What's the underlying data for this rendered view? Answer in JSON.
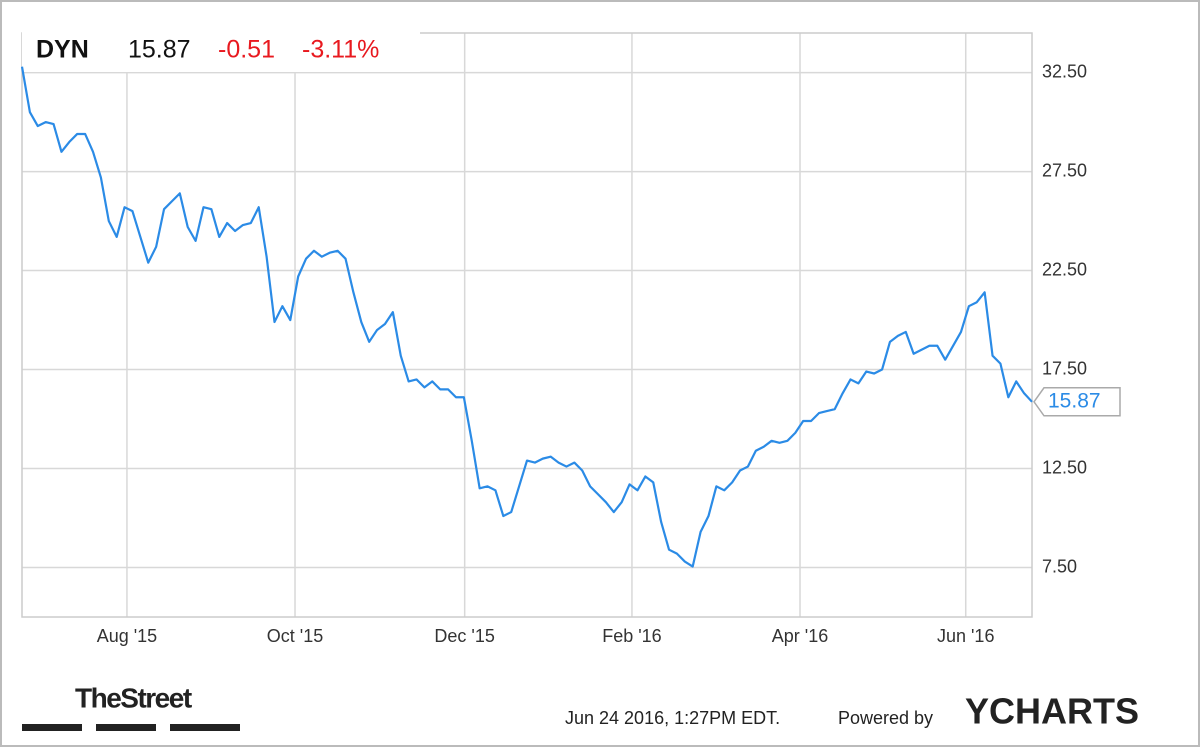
{
  "quote": {
    "symbol": "DYN",
    "price": "15.87",
    "change": "-0.51",
    "change_pct": "-3.11%"
  },
  "chart_data": {
    "type": "line",
    "series": [
      {
        "name": "DYN",
        "color": "#2b8be6",
        "values": [
          32.8,
          30.5,
          29.8,
          30.0,
          29.9,
          28.5,
          29.0,
          29.4,
          29.4,
          28.5,
          27.2,
          25.0,
          24.2,
          25.7,
          25.5,
          24.2,
          22.9,
          23.7,
          25.6,
          26.0,
          26.4,
          24.7,
          24.0,
          25.7,
          25.6,
          24.2,
          24.9,
          24.5,
          24.8,
          24.9,
          25.7,
          23.2,
          19.9,
          20.7,
          20.0,
          22.2,
          23.1,
          23.5,
          23.2,
          23.4,
          23.5,
          23.1,
          21.4,
          19.9,
          18.9,
          19.5,
          19.8,
          20.4,
          18.2,
          16.9,
          17.0,
          16.6,
          16.9,
          16.5,
          16.5,
          16.1,
          16.1,
          13.9,
          11.5,
          11.6,
          11.4,
          10.1,
          10.3,
          11.6,
          12.9,
          12.8,
          13.0,
          13.1,
          12.8,
          12.6,
          12.8,
          12.4,
          11.6,
          11.2,
          10.8,
          10.3,
          10.8,
          11.7,
          11.4,
          12.1,
          11.8,
          9.8,
          8.4,
          8.2,
          7.8,
          7.55,
          9.3,
          10.1,
          11.6,
          11.4,
          11.8,
          12.4,
          12.6,
          13.4,
          13.6,
          13.9,
          13.8,
          13.9,
          14.3,
          14.9,
          14.9,
          15.3,
          15.4,
          15.5,
          16.3,
          17.0,
          16.8,
          17.4,
          17.3,
          17.5,
          18.9,
          19.2,
          19.4,
          18.3,
          18.5,
          18.7,
          18.7,
          18.0,
          18.7,
          19.4,
          20.7,
          20.9,
          21.4,
          18.2,
          17.8,
          16.1,
          16.9,
          16.3,
          15.87
        ]
      }
    ],
    "xlim": [
      0,
      128
    ],
    "xticks": [
      {
        "value": 13.3,
        "label": "Aug '15"
      },
      {
        "value": 34.6,
        "label": "Oct '15"
      },
      {
        "value": 56.1,
        "label": "Dec '15"
      },
      {
        "value": 77.3,
        "label": "Feb '16"
      },
      {
        "value": 98.6,
        "label": "Apr '16"
      },
      {
        "value": 119.6,
        "label": "Jun '16"
      }
    ],
    "ylim": [
      5,
      34.5
    ],
    "yticks": [
      {
        "value": 7.5,
        "label": "7.50"
      },
      {
        "value": 12.5,
        "label": "12.50"
      },
      {
        "value": 17.5,
        "label": "17.50"
      },
      {
        "value": 22.5,
        "label": "22.50"
      },
      {
        "value": 27.5,
        "label": "27.50"
      },
      {
        "value": 32.5,
        "label": "32.50"
      }
    ],
    "grid": true
  },
  "footer": {
    "brand": "TheStreet",
    "timestamp": "Jun 24 2016, 1:27PM EDT.",
    "powered": "Powered by",
    "provider": "YCHARTS"
  }
}
